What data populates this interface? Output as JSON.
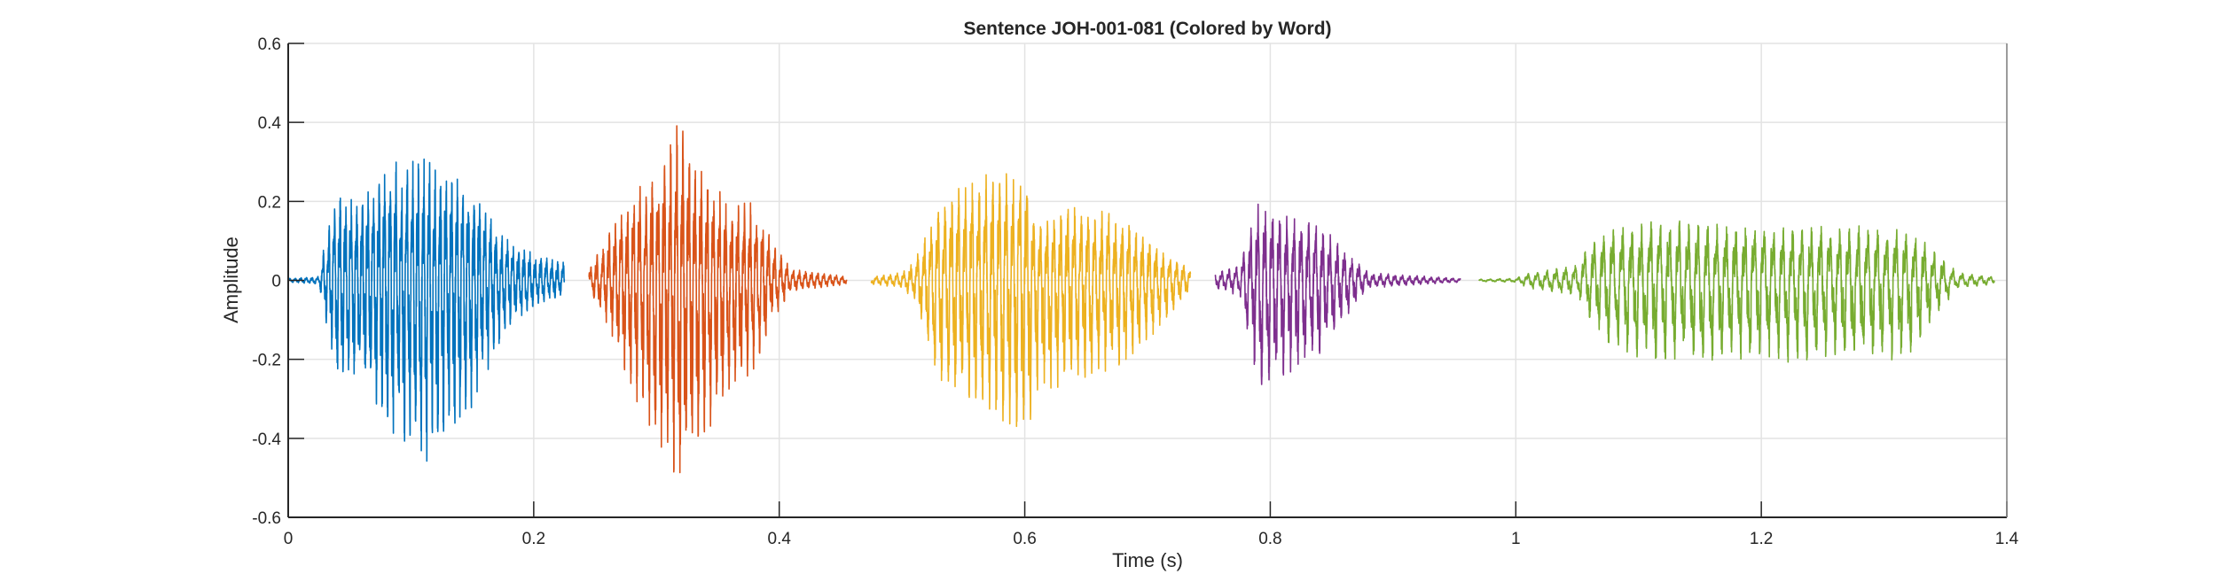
{
  "chart_data": {
    "type": "line",
    "title": "Sentence JOH-001-081 (Colored by Word)",
    "xlabel": "Time (s)",
    "ylabel": "Amplitude",
    "xlim": [
      0,
      1.4
    ],
    "ylim": [
      -0.6,
      0.6
    ],
    "grid": true,
    "legend": "none",
    "xticks": [
      0,
      0.2,
      0.4,
      0.6,
      0.8,
      1,
      1.2,
      1.4
    ],
    "xtick_labels": [
      "0",
      "0.2",
      "0.4",
      "0.6",
      "0.8",
      "1",
      "1.2",
      "1.4"
    ],
    "yticks": [
      -0.6,
      -0.4,
      -0.2,
      0,
      0.2,
      0.4,
      0.6
    ],
    "ytick_labels": [
      "-0.6",
      "-0.4",
      "-0.2",
      "0",
      "0.2",
      "0.4",
      "0.6"
    ],
    "series": [
      {
        "id": "word-1",
        "color": "#0072BD",
        "f0": 220,
        "envelope": [
          [
            0,
            0.005,
            -0.005
          ],
          [
            0.025,
            0.01,
            -0.01
          ],
          [
            0.03,
            0.12,
            -0.1
          ],
          [
            0.04,
            0.22,
            -0.26
          ],
          [
            0.06,
            0.22,
            -0.28
          ],
          [
            0.08,
            0.3,
            -0.38
          ],
          [
            0.11,
            0.32,
            -0.47
          ],
          [
            0.14,
            0.28,
            -0.4
          ],
          [
            0.16,
            0.2,
            -0.25
          ],
          [
            0.18,
            0.1,
            -0.12
          ],
          [
            0.2,
            0.07,
            -0.07
          ],
          [
            0.225,
            0.05,
            -0.04
          ]
        ]
      },
      {
        "id": "word-2",
        "color": "#D95319",
        "f0": 200,
        "envelope": [
          [
            0.245,
            0.03,
            -0.03
          ],
          [
            0.26,
            0.12,
            -0.12
          ],
          [
            0.28,
            0.22,
            -0.3
          ],
          [
            0.3,
            0.3,
            -0.42
          ],
          [
            0.32,
            0.43,
            -0.52
          ],
          [
            0.335,
            0.3,
            -0.45
          ],
          [
            0.36,
            0.2,
            -0.3
          ],
          [
            0.38,
            0.2,
            -0.24
          ],
          [
            0.395,
            0.1,
            -0.1
          ],
          [
            0.41,
            0.03,
            -0.03
          ],
          [
            0.455,
            0.01,
            -0.01
          ]
        ]
      },
      {
        "id": "word-3",
        "color": "#EDB120",
        "f0": 180,
        "envelope": [
          [
            0.475,
            0.01,
            -0.01
          ],
          [
            0.5,
            0.02,
            -0.02
          ],
          [
            0.51,
            0.05,
            -0.05
          ],
          [
            0.53,
            0.2,
            -0.28
          ],
          [
            0.56,
            0.27,
            -0.33
          ],
          [
            0.6,
            0.3,
            -0.42
          ],
          [
            0.61,
            0.15,
            -0.3
          ],
          [
            0.64,
            0.2,
            -0.26
          ],
          [
            0.68,
            0.17,
            -0.22
          ],
          [
            0.71,
            0.08,
            -0.12
          ],
          [
            0.735,
            0.03,
            -0.03
          ]
        ]
      },
      {
        "id": "word-4",
        "color": "#7E2F8E",
        "f0": 170,
        "envelope": [
          [
            0.755,
            0.02,
            -0.02
          ],
          [
            0.775,
            0.04,
            -0.04
          ],
          [
            0.79,
            0.2,
            -0.28
          ],
          [
            0.81,
            0.18,
            -0.26
          ],
          [
            0.84,
            0.15,
            -0.2
          ],
          [
            0.86,
            0.08,
            -0.1
          ],
          [
            0.88,
            0.02,
            -0.02
          ],
          [
            0.955,
            0.005,
            -0.005
          ]
        ]
      },
      {
        "id": "word-5",
        "color": "#77AC30",
        "f0": 130,
        "envelope": [
          [
            0.97,
            0.003,
            -0.003
          ],
          [
            1.0,
            0.005,
            -0.005
          ],
          [
            1.01,
            0.02,
            -0.02
          ],
          [
            1.05,
            0.04,
            -0.04
          ],
          [
            1.06,
            0.1,
            -0.1
          ],
          [
            1.08,
            0.14,
            -0.18
          ],
          [
            1.11,
            0.16,
            -0.21
          ],
          [
            1.2,
            0.14,
            -0.21
          ],
          [
            1.28,
            0.14,
            -0.21
          ],
          [
            1.32,
            0.13,
            -0.2
          ],
          [
            1.34,
            0.08,
            -0.1
          ],
          [
            1.36,
            0.02,
            -0.02
          ],
          [
            1.39,
            0.01,
            -0.01
          ]
        ]
      }
    ]
  }
}
